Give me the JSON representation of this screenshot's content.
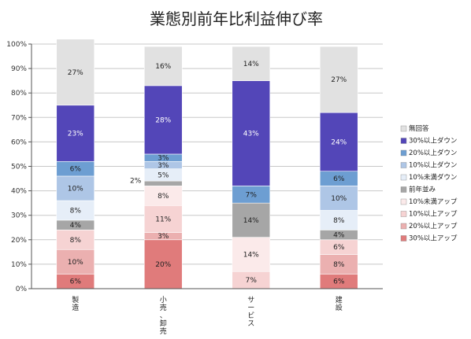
{
  "chart_data": {
    "type": "bar",
    "stacked": true,
    "title": "業態別前年比利益伸び率",
    "categories": [
      "製造",
      "小売、卸売",
      "サービス",
      "建設"
    ],
    "ylim": [
      0,
      100
    ],
    "yticks": [
      "0%",
      "10%",
      "20%",
      "30%",
      "40%",
      "50%",
      "60%",
      "70%",
      "80%",
      "90%",
      "100%"
    ],
    "legend_position": "right",
    "series": [
      {
        "name": "30%以上アップ",
        "color": "#e07b7b",
        "values": [
          6,
          20,
          0,
          6
        ],
        "labels": [
          "6%",
          "20%",
          "",
          "6%"
        ]
      },
      {
        "name": "20%以上アップ",
        "color": "#ebb0b0",
        "values": [
          10,
          3,
          0,
          8
        ],
        "labels": [
          "10%",
          "3%",
          "",
          "8%"
        ]
      },
      {
        "name": "10%以上アップ",
        "color": "#f6d3d3",
        "values": [
          8,
          11,
          7,
          6
        ],
        "labels": [
          "8%",
          "11%",
          "7%",
          "6%"
        ]
      },
      {
        "name": "10%未満アップ",
        "color": "#fbeaea",
        "values": [
          0,
          8,
          14,
          0
        ],
        "labels": [
          "",
          "8%",
          "14%",
          ""
        ]
      },
      {
        "name": "前年並み",
        "color": "#a6a6a6",
        "values": [
          4,
          2,
          14,
          4
        ],
        "labels": [
          "4%",
          "2%",
          "14%",
          "4%"
        ]
      },
      {
        "name": "10%未満ダウン",
        "color": "#e6eef8",
        "values": [
          8,
          5,
          0,
          8
        ],
        "labels": [
          "8%",
          "5%",
          "",
          "8%"
        ]
      },
      {
        "name": "10%以上ダウン",
        "color": "#aec6e6",
        "values": [
          10,
          3,
          0,
          10
        ],
        "labels": [
          "10%",
          "3%",
          "",
          "10%"
        ]
      },
      {
        "name": "20%以上ダウン",
        "color": "#6d9ed2",
        "values": [
          6,
          3,
          7,
          6
        ],
        "labels": [
          "6%",
          "3%",
          "7%",
          "6%"
        ]
      },
      {
        "name": "30%以上ダウン",
        "color": "#5346b8",
        "values": [
          23,
          28,
          43,
          24
        ],
        "labels": [
          "23%",
          "28%",
          "43%",
          "24%"
        ]
      },
      {
        "name": "無回答",
        "color": "#e1e1e1",
        "values": [
          27,
          16,
          14,
          27
        ],
        "labels": [
          "27%",
          "16%",
          "14%",
          "27%"
        ]
      }
    ]
  }
}
